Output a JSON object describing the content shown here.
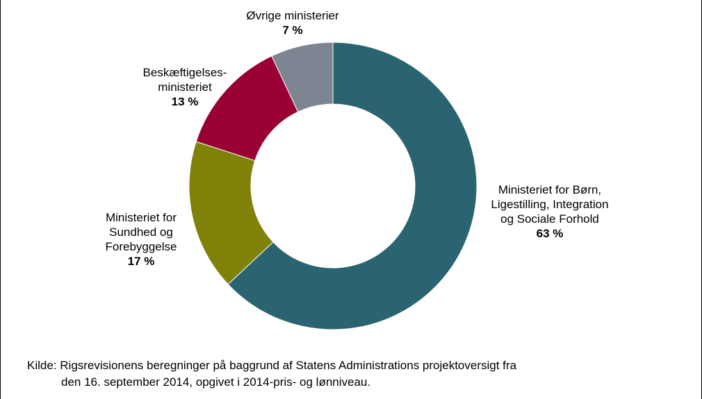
{
  "chart_data": {
    "type": "pie",
    "donut": true,
    "slices": [
      {
        "label_lines": [
          "Ministeriet for Børn,",
          "Ligestilling, Integration",
          "og Sociale Forhold"
        ],
        "value": 63,
        "value_label": "63 %",
        "color": "#2A6470"
      },
      {
        "label_lines": [
          "Ministeriet for",
          "Sundhed og",
          "Forebyggelse"
        ],
        "value": 17,
        "value_label": "17 %",
        "color": "#7F8108"
      },
      {
        "label_lines": [
          "Beskæftigelses-",
          "ministeriet"
        ],
        "value": 13,
        "value_label": "13 %",
        "color": "#990033"
      },
      {
        "label_lines": [
          "Øvrige ministerier"
        ],
        "value": 7,
        "value_label": "7 %",
        "color": "#7D8593"
      }
    ]
  },
  "source": {
    "prefix": "Kilde:",
    "line1": "Rigsrevisionens beregninger på baggrund af Statens Administrations projektoversigt fra",
    "line2": "den 16. september 2014, opgivet i 2014-pris- og lønniveau."
  }
}
